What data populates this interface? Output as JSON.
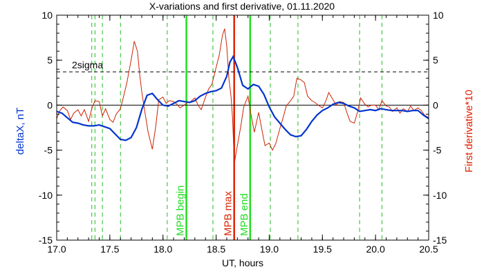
{
  "chart_data": {
    "type": "line",
    "title": "X-variations and first derivative, 01.11.2020",
    "xlabel": "UT, hours",
    "ylabel_left": "deltaX, nT",
    "ylabel_right": "First derivative*10",
    "xlim": [
      17.0,
      20.5
    ],
    "ylim": [
      -15,
      10
    ],
    "x_ticks": [
      "17.0",
      "17.5",
      "18.0",
      "18.5",
      "19.0",
      "19.5",
      "20.0",
      "20.5"
    ],
    "x_tick_values": [
      17.0,
      17.5,
      18.0,
      18.5,
      19.0,
      19.5,
      20.0,
      20.5
    ],
    "y_ticks": [
      "-15",
      "-10",
      "-5",
      "0",
      "5",
      "10"
    ],
    "y_tick_values": [
      -15,
      -10,
      -5,
      0,
      5,
      10
    ],
    "colors": {
      "deltaX": "#0033cc",
      "derivative": "#cc2200",
      "mpb_boundary": "#22dd22",
      "mpb_max": "#dd2200",
      "markers": "#22bb22"
    },
    "sigma_line": {
      "label": "2sigma",
      "value": 3.7
    },
    "zero_line": 0,
    "vertical_markers": [
      17.33,
      17.36,
      17.43,
      17.6,
      18.04,
      18.47,
      19.01,
      19.27,
      19.85,
      20.06
    ],
    "events": [
      {
        "name": "MPB begin",
        "x": 18.22,
        "color": "#22dd22"
      },
      {
        "name": "MPB max",
        "x": 18.67,
        "color": "#dd2200"
      },
      {
        "name": "MPB end",
        "x": 18.82,
        "color": "#22dd22"
      }
    ],
    "series": [
      {
        "name": "deltaX",
        "color": "#0033cc",
        "x": [
          17.0,
          17.05,
          17.1,
          17.15,
          17.2,
          17.25,
          17.3,
          17.35,
          17.4,
          17.45,
          17.5,
          17.55,
          17.6,
          17.65,
          17.7,
          17.75,
          17.8,
          17.85,
          17.9,
          17.95,
          18.0,
          18.05,
          18.1,
          18.15,
          18.2,
          18.25,
          18.3,
          18.35,
          18.4,
          18.45,
          18.5,
          18.55,
          18.6,
          18.63,
          18.66,
          18.7,
          18.75,
          18.8,
          18.85,
          18.9,
          18.95,
          19.0,
          19.05,
          19.1,
          19.15,
          19.2,
          19.25,
          19.3,
          19.35,
          19.4,
          19.45,
          19.5,
          19.55,
          19.6,
          19.65,
          19.7,
          19.75,
          19.8,
          19.85,
          19.9,
          19.95,
          20.0,
          20.05,
          20.1,
          20.15,
          20.2,
          20.25,
          20.3,
          20.35,
          20.4,
          20.45,
          20.5
        ],
        "values": [
          -0.7,
          -0.9,
          -1.4,
          -1.9,
          -2.0,
          -2.2,
          -2.3,
          -2.3,
          -2.2,
          -2.4,
          -2.6,
          -3.2,
          -3.8,
          -3.9,
          -3.6,
          -2.5,
          -0.5,
          1.1,
          1.3,
          0.6,
          0.0,
          -0.1,
          0.2,
          0.5,
          0.4,
          0.3,
          0.5,
          1.0,
          1.3,
          1.5,
          1.6,
          1.9,
          3.2,
          4.8,
          5.4,
          4.2,
          2.2,
          1.8,
          2.3,
          2.1,
          1.2,
          -0.2,
          -1.3,
          -2.0,
          -2.7,
          -3.3,
          -3.5,
          -3.4,
          -2.7,
          -1.8,
          -1.1,
          -0.6,
          -0.3,
          0.1,
          0.3,
          0.2,
          -0.1,
          -0.3,
          -0.7,
          -0.6,
          -0.5,
          -0.6,
          -0.4,
          -0.5,
          -0.6,
          -0.6,
          -0.6,
          -0.7,
          -0.6,
          -0.6,
          -1.1,
          -1.5
        ]
      },
      {
        "name": "First derivative*10",
        "color": "#cc2200",
        "x": [
          17.0,
          17.03,
          17.06,
          17.1,
          17.13,
          17.16,
          17.2,
          17.23,
          17.26,
          17.3,
          17.33,
          17.36,
          17.4,
          17.43,
          17.46,
          17.5,
          17.53,
          17.56,
          17.6,
          17.63,
          17.66,
          17.7,
          17.73,
          17.76,
          17.78,
          17.8,
          17.83,
          17.86,
          17.9,
          17.93,
          17.96,
          18.0,
          18.03,
          18.06,
          18.1,
          18.13,
          18.16,
          18.2,
          18.23,
          18.26,
          18.3,
          18.33,
          18.36,
          18.4,
          18.43,
          18.46,
          18.5,
          18.53,
          18.56,
          18.58,
          18.6,
          18.62,
          18.64,
          18.655,
          18.665,
          18.675,
          18.7,
          18.73,
          18.76,
          18.8,
          18.83,
          18.86,
          18.9,
          18.93,
          18.96,
          19.0,
          19.03,
          19.06,
          19.1,
          19.13,
          19.16,
          19.2,
          19.23,
          19.26,
          19.3,
          19.33,
          19.36,
          19.4,
          19.43,
          19.46,
          19.5,
          19.53,
          19.56,
          19.6,
          19.63,
          19.66,
          19.7,
          19.73,
          19.76,
          19.8,
          19.83,
          19.86,
          19.9,
          19.93,
          19.96,
          20.0,
          20.03,
          20.06,
          20.1,
          20.13,
          20.16,
          20.2,
          20.23,
          20.26,
          20.3,
          20.33,
          20.36,
          20.4,
          20.43,
          20.46,
          20.5
        ],
        "values": [
          -1.5,
          -0.6,
          -0.2,
          -0.6,
          -1.6,
          -0.9,
          -0.5,
          -1.2,
          -0.5,
          -1.8,
          -0.4,
          0.5,
          0.4,
          -1.2,
          -0.4,
          -1.6,
          -1.9,
          -1.0,
          -0.4,
          1.0,
          2.5,
          5.0,
          7.1,
          6.0,
          3.5,
          1.5,
          -0.8,
          -3.0,
          -4.9,
          -2.5,
          0.6,
          0.9,
          0.2,
          0.5,
          0.4,
          0.1,
          -0.3,
          0.0,
          0.3,
          0.4,
          0.8,
          0.0,
          -0.5,
          0.9,
          1.8,
          2.3,
          4.2,
          5.6,
          7.8,
          8.5,
          6.6,
          3.0,
          1.0,
          -1.5,
          -4.5,
          -6.2,
          -4.5,
          -2.5,
          -0.2,
          1.0,
          -1.2,
          -3.0,
          -0.8,
          -2.7,
          -4.5,
          -4.2,
          -5.0,
          -4.3,
          -2.6,
          -1.4,
          -0.1,
          0.5,
          1.0,
          3.0,
          2.8,
          2.5,
          1.0,
          0.5,
          0.3,
          0.0,
          -0.3,
          0.4,
          1.4,
          0.6,
          0.0,
          0.4,
          0.3,
          -0.8,
          -1.8,
          -2.0,
          -0.8,
          0.8,
          0.1,
          -0.2,
          0.0,
          0.0,
          -0.5,
          0.5,
          -0.1,
          -0.2,
          -0.7,
          -0.3,
          -0.9,
          -0.4,
          -0.7,
          -0.1,
          -0.6,
          -0.3,
          -0.6,
          -1.1,
          -1.4
        ]
      }
    ]
  }
}
